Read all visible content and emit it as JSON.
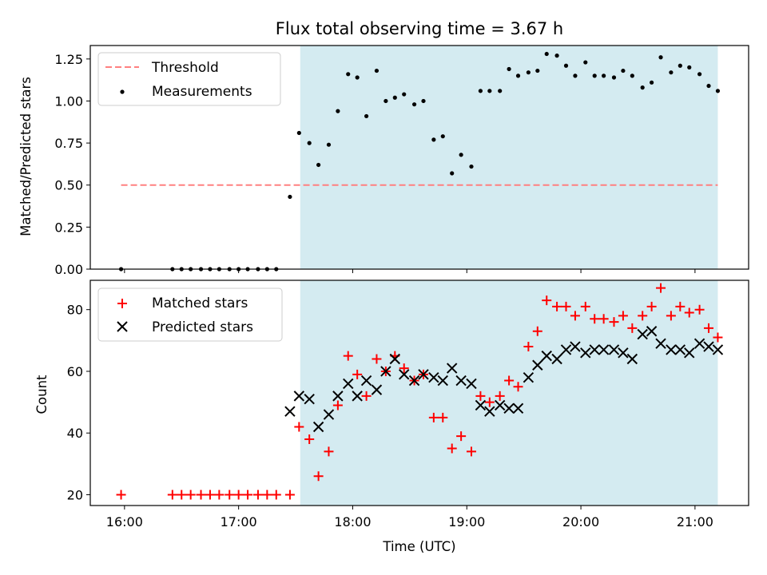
{
  "title": "Flux total observing time = 3.67 h",
  "colors": {
    "shade": "#d4ebf1",
    "threshold": "#ff8080",
    "measurement": "#000000",
    "matched": "#ff0000",
    "predicted": "#000000"
  },
  "chart_data": [
    {
      "type": "scatter",
      "name": "ratio",
      "ylabel": "Matched/Predicted stars",
      "ylim": [
        0,
        1.33
      ],
      "yticks": [
        "0.00",
        "0.25",
        "0.50",
        "0.75",
        "1.00",
        "1.25"
      ],
      "ytick_values": [
        0,
        0.25,
        0.5,
        0.75,
        1.0,
        1.25
      ],
      "xlim": [
        15.7,
        21.47
      ],
      "shaded_region": [
        17.54,
        21.2
      ],
      "legend": {
        "location": "upper-left",
        "entries": [
          "Threshold",
          "Measurements"
        ]
      },
      "threshold": {
        "label": "Threshold",
        "y": 0.5,
        "x_range": [
          15.97,
          21.2
        ]
      },
      "measurements": {
        "label": "Measurements",
        "x": [
          15.97,
          16.42,
          16.5,
          16.58,
          16.67,
          16.75,
          16.83,
          16.92,
          17.0,
          17.08,
          17.17,
          17.25,
          17.33,
          17.45,
          17.53,
          17.62,
          17.7,
          17.79,
          17.87,
          17.96,
          18.04,
          18.12,
          18.21,
          18.29,
          18.37,
          18.45,
          18.54,
          18.62,
          18.71,
          18.79,
          18.87,
          18.95,
          19.04,
          19.12,
          19.2,
          19.29,
          19.37,
          19.45,
          19.54,
          19.62,
          19.7,
          19.79,
          19.87,
          19.95,
          20.04,
          20.12,
          20.2,
          20.29,
          20.37,
          20.45,
          20.54,
          20.62,
          20.7,
          20.79,
          20.87,
          20.95,
          21.04,
          21.12,
          21.2
        ],
        "y": [
          0.0,
          0.0,
          0.0,
          0.0,
          0.0,
          0.0,
          0.0,
          0.0,
          0.0,
          0.0,
          0.0,
          0.0,
          0.0,
          0.43,
          0.81,
          0.75,
          0.62,
          0.74,
          0.94,
          1.16,
          1.14,
          0.91,
          1.18,
          1.0,
          1.02,
          1.04,
          0.98,
          1.0,
          0.77,
          0.79,
          0.57,
          0.68,
          0.61,
          1.06,
          1.06,
          1.06,
          1.19,
          1.15,
          1.17,
          1.18,
          1.28,
          1.27,
          1.21,
          1.15,
          1.23,
          1.15,
          1.15,
          1.14,
          1.18,
          1.15,
          1.08,
          1.11,
          1.26,
          1.17,
          1.21,
          1.2,
          1.16,
          1.09,
          1.06
        ]
      }
    },
    {
      "type": "scatter",
      "name": "counts",
      "xlabel": "Time (UTC)",
      "ylabel": "Count",
      "ylim": [
        16.5,
        89.5
      ],
      "yticks": [
        "20",
        "40",
        "60",
        "80"
      ],
      "ytick_values": [
        20,
        40,
        60,
        80
      ],
      "xlim": [
        15.7,
        21.47
      ],
      "xticks": [
        "16:00",
        "17:00",
        "18:00",
        "19:00",
        "20:00",
        "21:00"
      ],
      "xtick_values": [
        16,
        17,
        18,
        19,
        20,
        21
      ],
      "shaded_region": [
        17.54,
        21.2
      ],
      "legend": {
        "location": "upper-left",
        "entries": [
          "Matched stars",
          "Predicted stars"
        ]
      },
      "series": [
        {
          "name": "Matched stars",
          "marker": "plus",
          "x": [
            15.97,
            16.42,
            16.5,
            16.58,
            16.67,
            16.75,
            16.83,
            16.92,
            17.0,
            17.08,
            17.17,
            17.25,
            17.33,
            17.45,
            17.53,
            17.62,
            17.7,
            17.79,
            17.87,
            17.96,
            18.04,
            18.12,
            18.21,
            18.29,
            18.37,
            18.45,
            18.54,
            18.62,
            18.71,
            18.79,
            18.87,
            18.95,
            19.04,
            19.12,
            19.2,
            19.29,
            19.37,
            19.45,
            19.54,
            19.62,
            19.7,
            19.79,
            19.87,
            19.95,
            20.04,
            20.12,
            20.2,
            20.29,
            20.37,
            20.45,
            20.54,
            20.62,
            20.7,
            20.79,
            20.87,
            20.95,
            21.04,
            21.12,
            21.2
          ],
          "y": [
            20,
            20,
            20,
            20,
            20,
            20,
            20,
            20,
            20,
            20,
            20,
            20,
            20,
            20,
            42,
            38,
            26,
            34,
            49,
            65,
            59,
            52,
            64,
            60,
            65,
            61,
            57,
            59,
            45,
            45,
            35,
            39,
            34,
            52,
            50,
            52,
            57,
            55,
            68,
            73,
            83,
            81,
            81,
            78,
            81,
            77,
            77,
            76,
            78,
            74,
            78,
            81,
            87,
            78,
            81,
            79,
            80,
            74,
            71
          ]
        },
        {
          "name": "Predicted stars",
          "marker": "x",
          "x": [
            17.45,
            17.53,
            17.62,
            17.7,
            17.79,
            17.87,
            17.96,
            18.04,
            18.12,
            18.21,
            18.29,
            18.37,
            18.45,
            18.54,
            18.62,
            18.71,
            18.79,
            18.87,
            18.95,
            19.04,
            19.12,
            19.2,
            19.29,
            19.37,
            19.45,
            19.54,
            19.62,
            19.7,
            19.79,
            19.87,
            19.95,
            20.04,
            20.12,
            20.2,
            20.29,
            20.37,
            20.45,
            20.54,
            20.62,
            20.7,
            20.79,
            20.87,
            20.95,
            21.04,
            21.12,
            21.2
          ],
          "y": [
            47,
            52,
            51,
            42,
            46,
            52,
            56,
            52,
            57,
            54,
            60,
            64,
            59,
            57,
            59,
            58,
            57,
            61,
            57,
            56,
            49,
            47,
            49,
            48,
            48,
            58,
            62,
            65,
            64,
            67,
            68,
            66,
            67,
            67,
            67,
            66,
            64,
            72,
            73,
            69,
            67,
            67,
            66,
            69,
            68,
            67
          ]
        }
      ]
    }
  ]
}
